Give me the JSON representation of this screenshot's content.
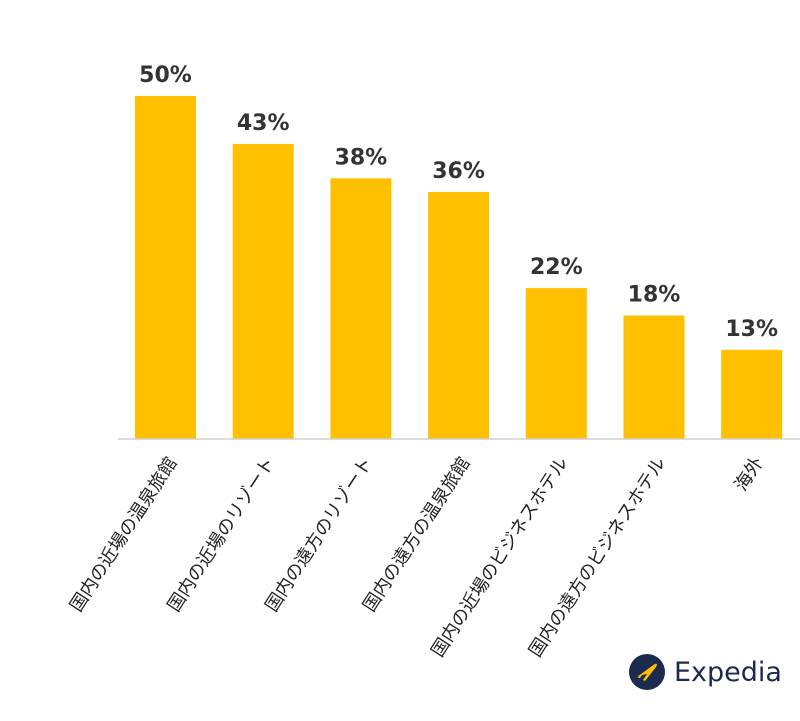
{
  "chart_data": {
    "type": "bar",
    "categories": [
      "国内の近場の温泉旅館",
      "国内の近場のリゾート",
      "国内の遠方のリゾート",
      "国内の遠方の温泉旅館",
      "国内の近場のビジネスホテル",
      "国内の遠方のビジネスホテル",
      "海外"
    ],
    "values": [
      50,
      43,
      38,
      36,
      22,
      18,
      13
    ],
    "value_labels": [
      "50%",
      "43%",
      "38%",
      "36%",
      "22%",
      "18%",
      "13%"
    ],
    "ylim": [
      0,
      50
    ],
    "grid": false,
    "bar_color": "#FFC000"
  },
  "branding": {
    "logo_text": "Expedia",
    "logo_icon": "airplane-icon",
    "logo_color": "#1d2a4f"
  }
}
